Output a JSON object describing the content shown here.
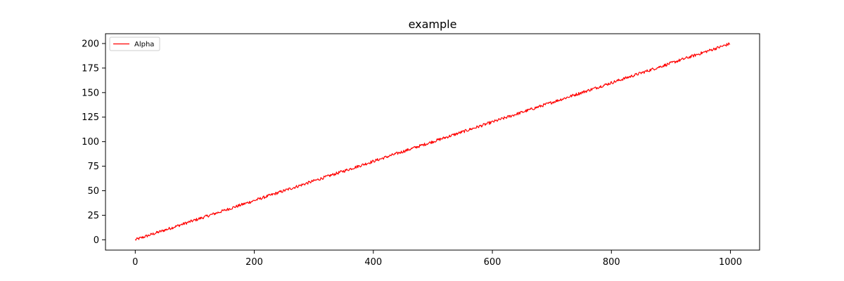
{
  "chart_data": {
    "type": "line",
    "title": "example",
    "xlabel": "",
    "ylabel": "",
    "xlim": [
      -50,
      1049
    ],
    "ylim": [
      -10.5,
      210
    ],
    "x_ticks": [
      0,
      200,
      400,
      600,
      800,
      1000
    ],
    "y_ticks": [
      0,
      25,
      50,
      75,
      100,
      125,
      150,
      175,
      200
    ],
    "grid": false,
    "legend_position": "upper-left",
    "series": [
      {
        "name": "Alpha",
        "color": "#ff0000",
        "x_start": 0,
        "x_end": 999,
        "slope": 0.2,
        "intercept": 0,
        "noise_amplitude": 1.5,
        "points": [
          [
            0,
            0.0
          ],
          [
            50,
            10.0
          ],
          [
            100,
            20.0
          ],
          [
            150,
            30.0
          ],
          [
            200,
            40.0
          ],
          [
            250,
            50.0
          ],
          [
            300,
            60.0
          ],
          [
            350,
            70.0
          ],
          [
            400,
            80.0
          ],
          [
            450,
            90.0
          ],
          [
            500,
            100.0
          ],
          [
            550,
            110.0
          ],
          [
            600,
            120.0
          ],
          [
            650,
            130.0
          ],
          [
            700,
            140.0
          ],
          [
            750,
            150.0
          ],
          [
            800,
            160.0
          ],
          [
            850,
            170.0
          ],
          [
            900,
            180.0
          ],
          [
            950,
            190.0
          ],
          [
            999,
            199.0
          ]
        ]
      }
    ]
  }
}
